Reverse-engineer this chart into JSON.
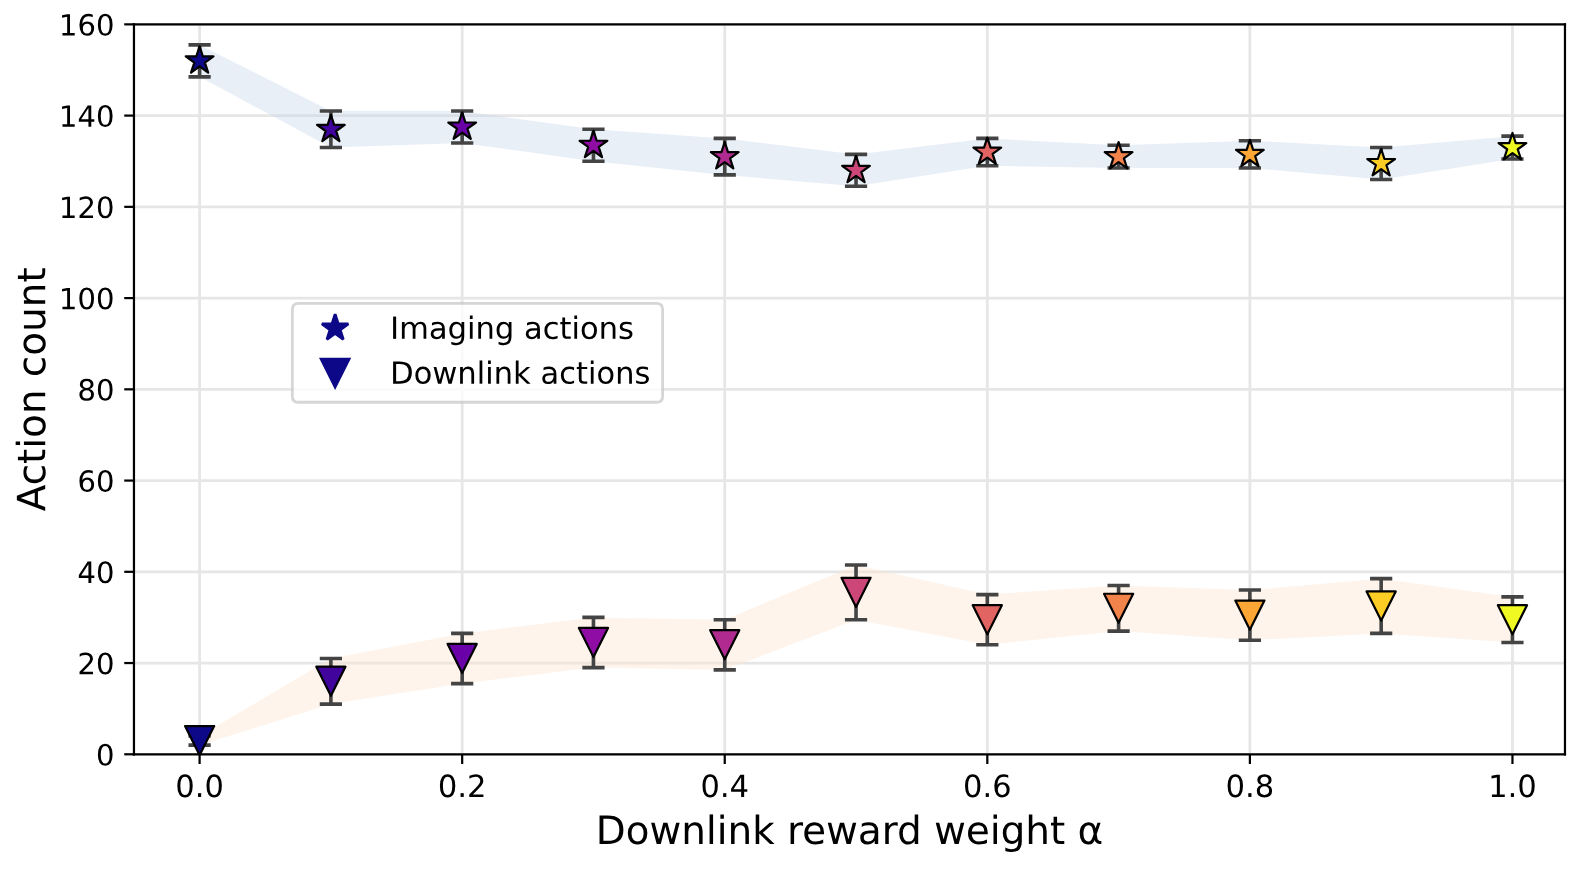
{
  "chart_data": {
    "type": "scatter",
    "xlabel": "Downlink reward weight α",
    "ylabel": "Action count",
    "x": [
      0.0,
      0.1,
      0.2,
      0.3,
      0.4,
      0.5,
      0.6,
      0.7,
      0.8,
      0.9,
      1.0
    ],
    "series": [
      {
        "name": "Imaging actions",
        "marker": "star",
        "color": "#0d0887",
        "colors": [
          "#0d0887",
          "#41049d",
          "#6a00a8",
          "#8f0da4",
          "#b12a90",
          "#cc4778",
          "#e16462",
          "#f2844b",
          "#fca636",
          "#fcce25",
          "#f0f921"
        ],
        "values": [
          152,
          137,
          137.5,
          133.5,
          131,
          128,
          132,
          131,
          131.5,
          129.5,
          133
        ],
        "errors": [
          3.5,
          4,
          3.5,
          3.5,
          4,
          3.5,
          3,
          2.5,
          3,
          3.5,
          2.5
        ],
        "lower": [
          148.5,
          133,
          134,
          130,
          127,
          124.5,
          129,
          128.5,
          128.5,
          126,
          130.5
        ],
        "upper": [
          155.5,
          141,
          141,
          137,
          135,
          131.5,
          135,
          133.5,
          134.5,
          133,
          135.5
        ]
      },
      {
        "name": "Downlink actions",
        "marker": "triangle",
        "color": "#0d0887",
        "colors": [
          "#0d0887",
          "#41049d",
          "#6a00a8",
          "#8f0da4",
          "#b12a90",
          "#cc4778",
          "#e16462",
          "#f2844b",
          "#fca636",
          "#fcce25",
          "#f0f921"
        ],
        "values": [
          3,
          16,
          21,
          24.5,
          24,
          35.5,
          29.5,
          32,
          30.5,
          32.5,
          29.5
        ],
        "errors": [
          1,
          5,
          5.5,
          5.5,
          5.5,
          6,
          5.5,
          5,
          5.5,
          6,
          5
        ],
        "lower": [
          2,
          11,
          15.5,
          19,
          18.5,
          29.5,
          24,
          27,
          25,
          26.5,
          24.5
        ],
        "upper": [
          4,
          21,
          26.5,
          30,
          29.5,
          41.5,
          35,
          37,
          36,
          38.5,
          34.5
        ]
      }
    ],
    "xlim": [
      -0.05,
      1.04
    ],
    "xticks": [
      {
        "value": 0,
        "label": "0.0"
      },
      {
        "value": 0.2,
        "label": "0.2"
      },
      {
        "value": 0.4,
        "label": "0.4"
      },
      {
        "value": 0.6,
        "label": "0.6"
      },
      {
        "value": 0.8,
        "label": "0.8"
      },
      {
        "value": 1.0,
        "label": "1.0"
      }
    ],
    "ylim": [
      0,
      160
    ],
    "yticks": [
      0,
      20,
      40,
      60,
      80,
      100,
      120,
      140,
      160
    ],
    "grid": true,
    "legend": "center left"
  }
}
